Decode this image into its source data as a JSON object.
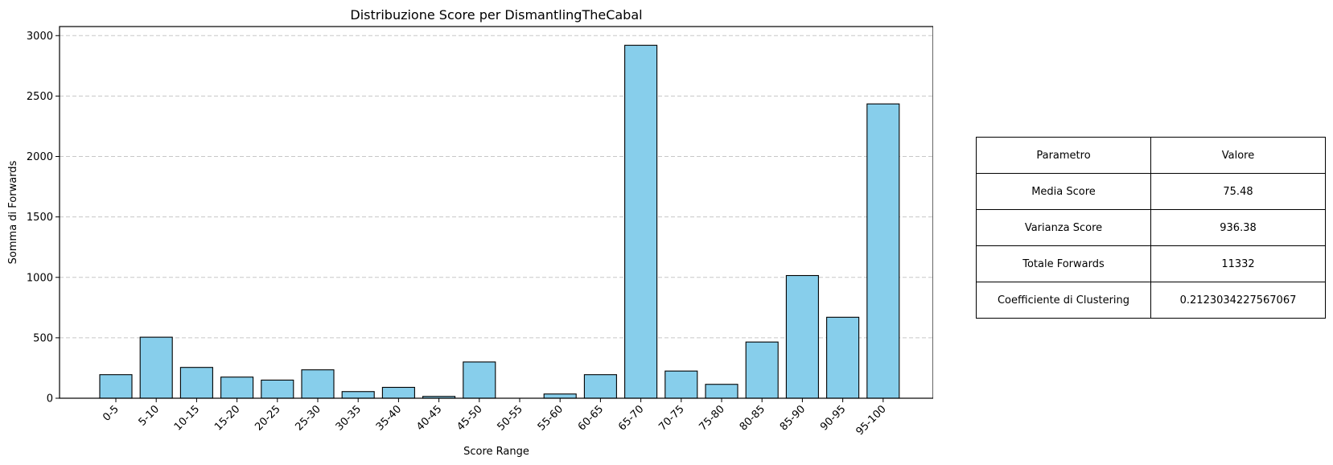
{
  "chart_data": {
    "type": "bar",
    "title": "Distribuzione Score per DismantlingTheCabal",
    "xlabel": "Score Range",
    "ylabel": "Somma di Forwards",
    "categories": [
      "0-5",
      "5-10",
      "10-15",
      "15-20",
      "20-25",
      "25-30",
      "30-35",
      "35-40",
      "40-45",
      "45-50",
      "50-55",
      "55-60",
      "60-65",
      "65-70",
      "70-75",
      "75-80",
      "80-85",
      "85-90",
      "90-95",
      "95-100"
    ],
    "values": [
      195,
      505,
      255,
      175,
      150,
      235,
      55,
      90,
      15,
      300,
      0,
      35,
      195,
      2920,
      225,
      115,
      465,
      1015,
      670,
      2435
    ],
    "ylim": [
      0,
      3075
    ],
    "yticks": [
      0,
      500,
      1000,
      1500,
      2000,
      2500,
      3000
    ],
    "grid": "y-dashed",
    "bar_color": "#87ceeb",
    "edge_color": "#000000"
  },
  "table": {
    "header": [
      "Parametro",
      "Valore"
    ],
    "rows": [
      [
        "Media Score",
        "75.48"
      ],
      [
        "Varianza Score",
        "936.38"
      ],
      [
        "Totale Forwards",
        "11332"
      ],
      [
        "Coefficiente di Clustering",
        "0.2123034227567067"
      ]
    ]
  }
}
